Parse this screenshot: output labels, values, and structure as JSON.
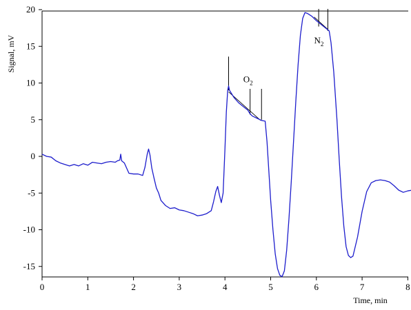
{
  "chart_data": {
    "type": "line",
    "xlabel": "Time, min",
    "ylabel": "Signal, mV",
    "xlim": [
      0,
      8
    ],
    "ylim": [
      -16.5,
      20
    ],
    "xticks": [
      0,
      1,
      2,
      3,
      4,
      5,
      6,
      7,
      8
    ],
    "yticks": [
      -15,
      -10,
      -5,
      0,
      5,
      10,
      15,
      20
    ],
    "grid": false,
    "line_color": "#1c1ccc",
    "series": [
      {
        "points": [
          [
            0.0,
            0.3
          ],
          [
            0.1,
            0.0
          ],
          [
            0.2,
            -0.1
          ],
          [
            0.3,
            -0.6
          ],
          [
            0.4,
            -0.9
          ],
          [
            0.5,
            -1.1
          ],
          [
            0.6,
            -1.3
          ],
          [
            0.7,
            -1.1
          ],
          [
            0.8,
            -1.3
          ],
          [
            0.9,
            -1.0
          ],
          [
            1.0,
            -1.2
          ],
          [
            1.1,
            -0.8
          ],
          [
            1.2,
            -0.9
          ],
          [
            1.3,
            -1.0
          ],
          [
            1.4,
            -0.8
          ],
          [
            1.5,
            -0.7
          ],
          [
            1.6,
            -0.8
          ],
          [
            1.65,
            -0.6
          ],
          [
            1.7,
            -0.5
          ],
          [
            1.72,
            0.3
          ],
          [
            1.74,
            -0.6
          ],
          [
            1.8,
            -0.9
          ],
          [
            1.9,
            -2.3
          ],
          [
            2.0,
            -2.4
          ],
          [
            2.1,
            -2.4
          ],
          [
            2.2,
            -2.6
          ],
          [
            2.25,
            -1.5
          ],
          [
            2.3,
            0.3
          ],
          [
            2.33,
            1.0
          ],
          [
            2.36,
            0.2
          ],
          [
            2.4,
            -1.6
          ],
          [
            2.45,
            -3.0
          ],
          [
            2.5,
            -4.3
          ],
          [
            2.55,
            -5.0
          ],
          [
            2.6,
            -6.0
          ],
          [
            2.7,
            -6.7
          ],
          [
            2.8,
            -7.1
          ],
          [
            2.9,
            -7.0
          ],
          [
            3.0,
            -7.3
          ],
          [
            3.1,
            -7.4
          ],
          [
            3.2,
            -7.6
          ],
          [
            3.3,
            -7.8
          ],
          [
            3.4,
            -8.1
          ],
          [
            3.5,
            -8.0
          ],
          [
            3.6,
            -7.8
          ],
          [
            3.7,
            -7.4
          ],
          [
            3.75,
            -6.2
          ],
          [
            3.8,
            -4.8
          ],
          [
            3.84,
            -4.1
          ],
          [
            3.88,
            -5.3
          ],
          [
            3.92,
            -6.3
          ],
          [
            3.96,
            -5.0
          ],
          [
            4.0,
            1.0
          ],
          [
            4.03,
            6.0
          ],
          [
            4.06,
            9.0
          ],
          [
            4.08,
            9.6
          ],
          [
            4.1,
            9.0
          ],
          [
            4.2,
            8.0
          ],
          [
            4.3,
            7.3
          ],
          [
            4.4,
            6.8
          ],
          [
            4.5,
            6.3
          ],
          [
            4.55,
            5.8
          ],
          [
            4.6,
            5.5
          ],
          [
            4.7,
            5.2
          ],
          [
            4.8,
            4.9
          ],
          [
            4.88,
            4.8
          ],
          [
            4.92,
            2.0
          ],
          [
            4.96,
            -2.0
          ],
          [
            5.0,
            -6.0
          ],
          [
            5.05,
            -10.0
          ],
          [
            5.1,
            -13.3
          ],
          [
            5.15,
            -15.3
          ],
          [
            5.2,
            -16.2
          ],
          [
            5.25,
            -16.4
          ],
          [
            5.3,
            -15.6
          ],
          [
            5.35,
            -12.8
          ],
          [
            5.4,
            -8.5
          ],
          [
            5.45,
            -3.5
          ],
          [
            5.5,
            2.0
          ],
          [
            5.55,
            7.5
          ],
          [
            5.6,
            12.5
          ],
          [
            5.65,
            16.5
          ],
          [
            5.7,
            18.8
          ],
          [
            5.75,
            19.6
          ],
          [
            5.8,
            19.5
          ],
          [
            5.9,
            19.1
          ],
          [
            6.0,
            18.5
          ],
          [
            6.1,
            18.0
          ],
          [
            6.2,
            17.5
          ],
          [
            6.28,
            17.1
          ],
          [
            6.32,
            15.5
          ],
          [
            6.38,
            11.5
          ],
          [
            6.45,
            5.0
          ],
          [
            6.5,
            -0.5
          ],
          [
            6.55,
            -5.5
          ],
          [
            6.6,
            -9.5
          ],
          [
            6.65,
            -12.3
          ],
          [
            6.7,
            -13.5
          ],
          [
            6.75,
            -13.8
          ],
          [
            6.8,
            -13.6
          ],
          [
            6.9,
            -11.0
          ],
          [
            7.0,
            -7.5
          ],
          [
            7.1,
            -4.8
          ],
          [
            7.2,
            -3.6
          ],
          [
            7.3,
            -3.3
          ],
          [
            7.4,
            -3.2
          ],
          [
            7.5,
            -3.3
          ],
          [
            7.6,
            -3.5
          ],
          [
            7.7,
            -4.0
          ],
          [
            7.8,
            -4.6
          ],
          [
            7.9,
            -4.9
          ],
          [
            8.0,
            -4.7
          ],
          [
            8.1,
            -4.6
          ]
        ]
      }
    ],
    "annotations": [
      {
        "label": "O",
        "subscript": "2",
        "x": 4.4,
        "y": 10.1
      },
      {
        "label": "N",
        "subscript": "2",
        "x": 5.95,
        "y": 15.4
      }
    ],
    "markers": [
      {
        "x": 4.08,
        "y_top": 13.6,
        "y_bottom": 9.0
      },
      {
        "x": 4.55,
        "y_top": 9.2,
        "y_bottom": 5.7
      },
      {
        "x": 4.8,
        "y_top": 9.2,
        "y_bottom": 5.0
      },
      {
        "x": 6.05,
        "y_top": 20.1,
        "y_bottom": 17.7
      },
      {
        "x": 6.25,
        "y_top": 20.1,
        "y_bottom": 17.1
      }
    ],
    "baselines": [
      {
        "x1": 4.08,
        "y1": 8.8,
        "x2": 4.78,
        "y2": 4.9
      },
      {
        "x1": 5.95,
        "y1": 19.0,
        "x2": 6.25,
        "y2": 17.3
      }
    ]
  }
}
